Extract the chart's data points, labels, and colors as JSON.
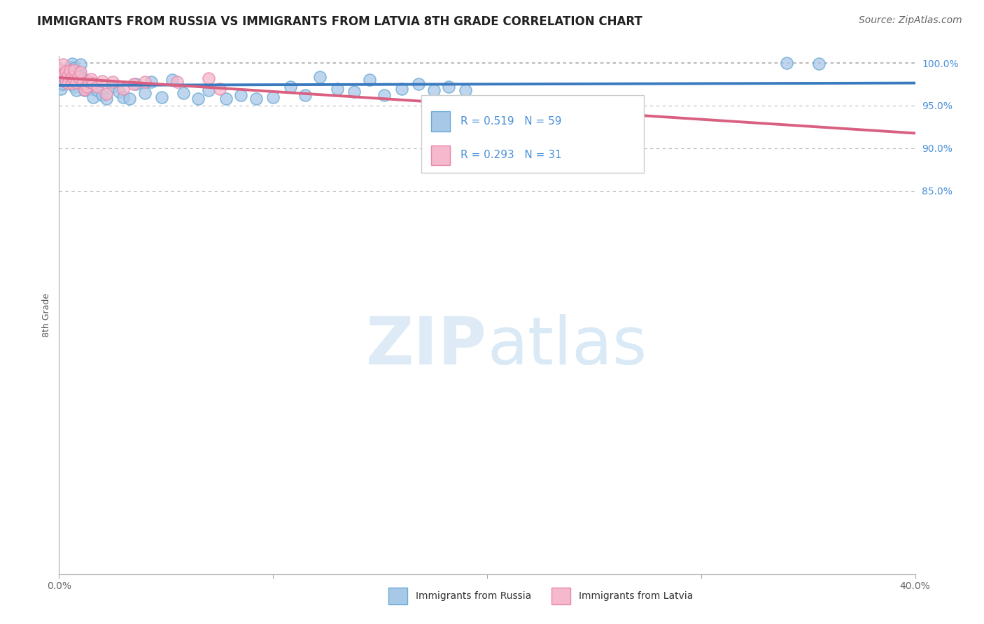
{
  "title": "IMMIGRANTS FROM RUSSIA VS IMMIGRANTS FROM LATVIA 8TH GRADE CORRELATION CHART",
  "source_text": "Source: ZipAtlas.com",
  "ylabel": "8th Grade",
  "xlim": [
    0.0,
    0.4
  ],
  "ylim": [
    0.4,
    1.008
  ],
  "xticks": [
    0.0,
    0.1,
    0.2,
    0.3,
    0.4
  ],
  "xtick_labels": [
    "0.0%",
    "",
    "",
    "",
    "40.0%"
  ],
  "yticks": [
    0.85,
    0.9,
    0.95,
    1.0
  ],
  "ytick_labels": [
    "85.0%",
    "90.0%",
    "95.0%",
    "100.0%"
  ],
  "russia_color": "#a8c8e8",
  "russia_edge_color": "#6aaad4",
  "latvia_color": "#f5b8cc",
  "latvia_edge_color": "#e888aa",
  "russia_line_color": "#3a7abf",
  "latvia_line_color": "#d96080",
  "russia_R": 0.519,
  "russia_N": 59,
  "latvia_R": 0.293,
  "latvia_N": 31,
  "legend_label_russia": "Immigrants from Russia",
  "legend_label_latvia": "Immigrants from Latvia",
  "watermark_zip": "ZIP",
  "watermark_atlas": "atlas",
  "title_fontsize": 12,
  "axis_label_fontsize": 9,
  "tick_fontsize": 10,
  "legend_fontsize": 11,
  "source_fontsize": 10,
  "russia_x": [
    0.001,
    0.002,
    0.002,
    0.003,
    0.003,
    0.004,
    0.004,
    0.005,
    0.005,
    0.006,
    0.006,
    0.006,
    0.007,
    0.007,
    0.007,
    0.008,
    0.008,
    0.009,
    0.01,
    0.01,
    0.011,
    0.012,
    0.013,
    0.014,
    0.015,
    0.016,
    0.018,
    0.02,
    0.022,
    0.025,
    0.028,
    0.03,
    0.033,
    0.036,
    0.04,
    0.043,
    0.048,
    0.053,
    0.058,
    0.065,
    0.07,
    0.078,
    0.085,
    0.092,
    0.1,
    0.108,
    0.115,
    0.122,
    0.13,
    0.138,
    0.145,
    0.152,
    0.16,
    0.168,
    0.175,
    0.182,
    0.19,
    0.34,
    0.355
  ],
  "russia_y": [
    0.97,
    0.975,
    0.985,
    0.988,
    0.978,
    0.99,
    0.982,
    0.995,
    0.98,
    0.999,
    0.988,
    0.975,
    0.994,
    0.985,
    0.972,
    0.978,
    0.968,
    0.983,
    0.998,
    0.985,
    0.982,
    0.968,
    0.976,
    0.974,
    0.97,
    0.96,
    0.968,
    0.962,
    0.958,
    0.972,
    0.966,
    0.96,
    0.958,
    0.975,
    0.965,
    0.978,
    0.96,
    0.98,
    0.965,
    0.958,
    0.968,
    0.958,
    0.962,
    0.958,
    0.96,
    0.972,
    0.962,
    0.984,
    0.97,
    0.966,
    0.98,
    0.962,
    0.97,
    0.975,
    0.968,
    0.972,
    0.968,
    1.0,
    0.999
  ],
  "latvia_x": [
    0.001,
    0.002,
    0.002,
    0.003,
    0.003,
    0.004,
    0.004,
    0.005,
    0.006,
    0.006,
    0.007,
    0.007,
    0.008,
    0.009,
    0.01,
    0.011,
    0.012,
    0.013,
    0.014,
    0.015,
    0.016,
    0.018,
    0.02,
    0.022,
    0.025,
    0.03,
    0.035,
    0.04,
    0.055,
    0.07,
    0.075
  ],
  "latvia_y": [
    0.992,
    0.998,
    0.986,
    0.978,
    0.99,
    0.985,
    0.976,
    0.991,
    0.984,
    0.976,
    0.98,
    0.992,
    0.977,
    0.984,
    0.989,
    0.976,
    0.969,
    0.972,
    0.978,
    0.981,
    0.976,
    0.972,
    0.979,
    0.964,
    0.978,
    0.97,
    0.975,
    0.978,
    0.978,
    0.982,
    0.97
  ]
}
